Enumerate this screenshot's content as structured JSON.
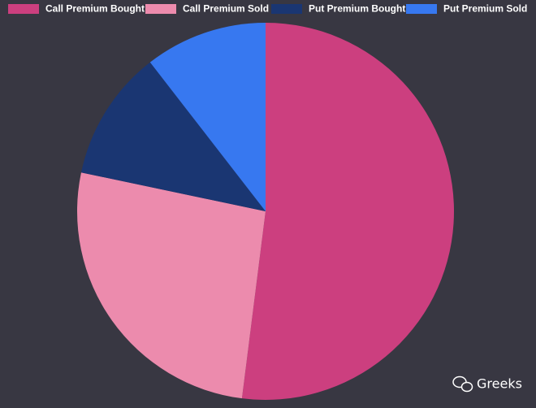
{
  "chart_data": {
    "type": "pie",
    "series": [
      {
        "name": "Call Premium Bought",
        "color": "#cc3f7f",
        "values": [
          52
        ]
      },
      {
        "name": "Call Premium Sold",
        "color": "#ec8bad",
        "values": [
          26.3
        ]
      },
      {
        "name": "Put Premium Bought",
        "color": "#1a3672",
        "values": [
          11.2
        ]
      },
      {
        "name": "Put Premium Sold",
        "color": "#3778f0",
        "values": [
          10.5
        ]
      }
    ],
    "legend": "top",
    "watermark": "Greeks"
  }
}
